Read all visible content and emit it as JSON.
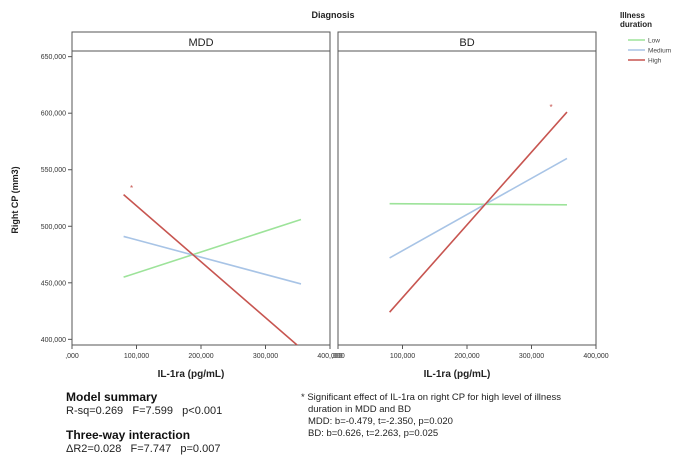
{
  "chart_data": {
    "type": "line",
    "title": "Diagnosis",
    "xlabel": "IL-1ra (pg/mL)",
    "ylabel": "Right CP (mm3)",
    "legend_title": "Illness duration",
    "legend_placement": "top-right",
    "xlim": [
      0,
      400000
    ],
    "ylim": [
      395000,
      655000
    ],
    "x_ticks": [
      ",000",
      "100,000",
      "200,000",
      "300,000",
      "400,000"
    ],
    "x_tick_values": [
      0,
      100000,
      200000,
      300000,
      400000
    ],
    "y_ticks": [
      "400,000",
      "450,000",
      "500,000",
      "550,000",
      "600,000",
      "650,000"
    ],
    "y_tick_values": [
      400000,
      450000,
      500000,
      550000,
      600000,
      650000
    ],
    "panels": [
      {
        "name": "MDD",
        "series": [
          {
            "name": "Low",
            "color": "#9de39a",
            "x": [
              80000,
              355000
            ],
            "y": [
              455000,
              506000
            ]
          },
          {
            "name": "Medium",
            "color": "#a8c4e6",
            "x": [
              80000,
              355000
            ],
            "y": [
              491000,
              449000
            ]
          },
          {
            "name": "High",
            "color": "#c75550",
            "x": [
              80000,
              355000
            ],
            "y": [
              528000,
              392000
            ]
          }
        ],
        "annotations": [
          {
            "text": "*",
            "x": 90000,
            "y": 531000
          }
        ]
      },
      {
        "name": "BD",
        "series": [
          {
            "name": "Low",
            "color": "#9de39a",
            "x": [
              80000,
              355000
            ],
            "y": [
              520000,
              519000
            ]
          },
          {
            "name": "Medium",
            "color": "#a8c4e6",
            "x": [
              80000,
              355000
            ],
            "y": [
              472000,
              560000
            ]
          },
          {
            "name": "High",
            "color": "#c75550",
            "x": [
              80000,
              355000
            ],
            "y": [
              424000,
              601000
            ]
          }
        ],
        "annotations": [
          {
            "text": "*",
            "x": 328000,
            "y": 603000
          }
        ]
      }
    ]
  },
  "summary": {
    "model_title": "Model summary",
    "model_stats": "R-sq=0.269   F=7.599   p<0.001",
    "interaction_title": "Three-way interaction",
    "interaction_stats": "ΔR2=0.028   F=7.747   p=0.007"
  },
  "note": {
    "line1": "* Significant effect of IL-1ra on right CP for high level of illness",
    "line2": "duration in MDD and BD",
    "mdd": "MDD: b=-0.479, t=-2.350, p=0.020",
    "bd": "BD: b=0.626, t=2.263, p=0.025"
  }
}
